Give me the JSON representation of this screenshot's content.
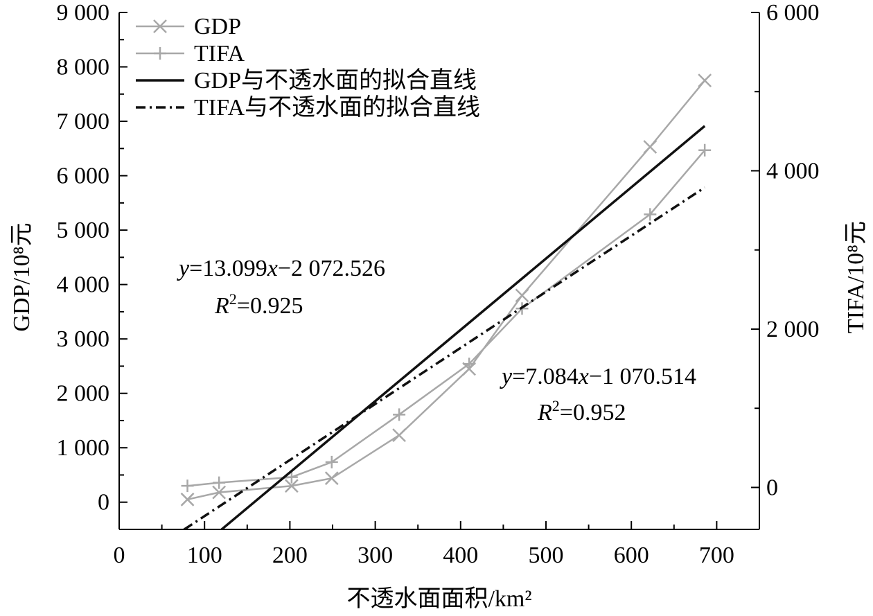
{
  "chart_data": {
    "type": "line",
    "x_axis": {
      "label": "不透水面面积/km²",
      "range": [
        0,
        750
      ],
      "ticks": [
        0,
        100,
        200,
        300,
        400,
        500,
        600,
        700
      ],
      "tick_labels": [
        "0",
        "100",
        "200",
        "300",
        "400",
        "500",
        "600",
        "700"
      ]
    },
    "y_left": {
      "label": "GDP/10⁸元",
      "range": [
        -500,
        9000
      ],
      "ticks": [
        0,
        1000,
        2000,
        3000,
        4000,
        5000,
        6000,
        7000,
        8000,
        9000
      ],
      "tick_labels": [
        "0",
        "1 000",
        "2 000",
        "3 000",
        "4 000",
        "5 000",
        "6 000",
        "7 000",
        "8 000",
        "9 000"
      ]
    },
    "y_right": {
      "label": "TIFA/10⁸元",
      "range": [
        -530,
        6000
      ],
      "ticks": [
        0,
        2000,
        4000,
        6000
      ],
      "tick_labels": [
        "0",
        "2 000",
        "4 000",
        "6 000"
      ]
    },
    "legend_position": "top-left",
    "series": [
      {
        "name": "GDP",
        "axis": "left",
        "style": "line-x-marker",
        "color": "#a8a8a8",
        "x": [
          80,
          117,
          202,
          249,
          328,
          410,
          472,
          622,
          686
        ],
        "y": [
          50,
          180,
          300,
          440,
          1230,
          2450,
          3800,
          6530,
          7750
        ]
      },
      {
        "name": "TIFA",
        "axis": "right",
        "style": "line-plus-marker",
        "color": "#a8a8a8",
        "x": [
          80,
          117,
          202,
          249,
          328,
          410,
          472,
          622,
          686
        ],
        "y": [
          20,
          60,
          130,
          320,
          920,
          1560,
          2260,
          3450,
          4260
        ]
      },
      {
        "name": "GDP与不透水面的拟合直线",
        "axis": "left",
        "style": "solid",
        "color": "#111111",
        "slope": 13.099,
        "intercept": -2072.526,
        "x_range": [
          120,
          686
        ]
      },
      {
        "name": "TIFA与不透水面的拟合直线",
        "axis": "right",
        "style": "dashdot",
        "color": "#111111",
        "slope": 7.084,
        "intercept": -1070.514,
        "x_range": [
          76,
          686
        ]
      }
    ],
    "annotations": [
      {
        "id": "gdp",
        "y_eq": "=13.099",
        "x_eq": "−2 072.526",
        "r2": "=0.925"
      },
      {
        "id": "tifa",
        "y_eq": "=7.084",
        "x_eq": "−1 070.514",
        "r2": "=0.952"
      }
    ]
  }
}
